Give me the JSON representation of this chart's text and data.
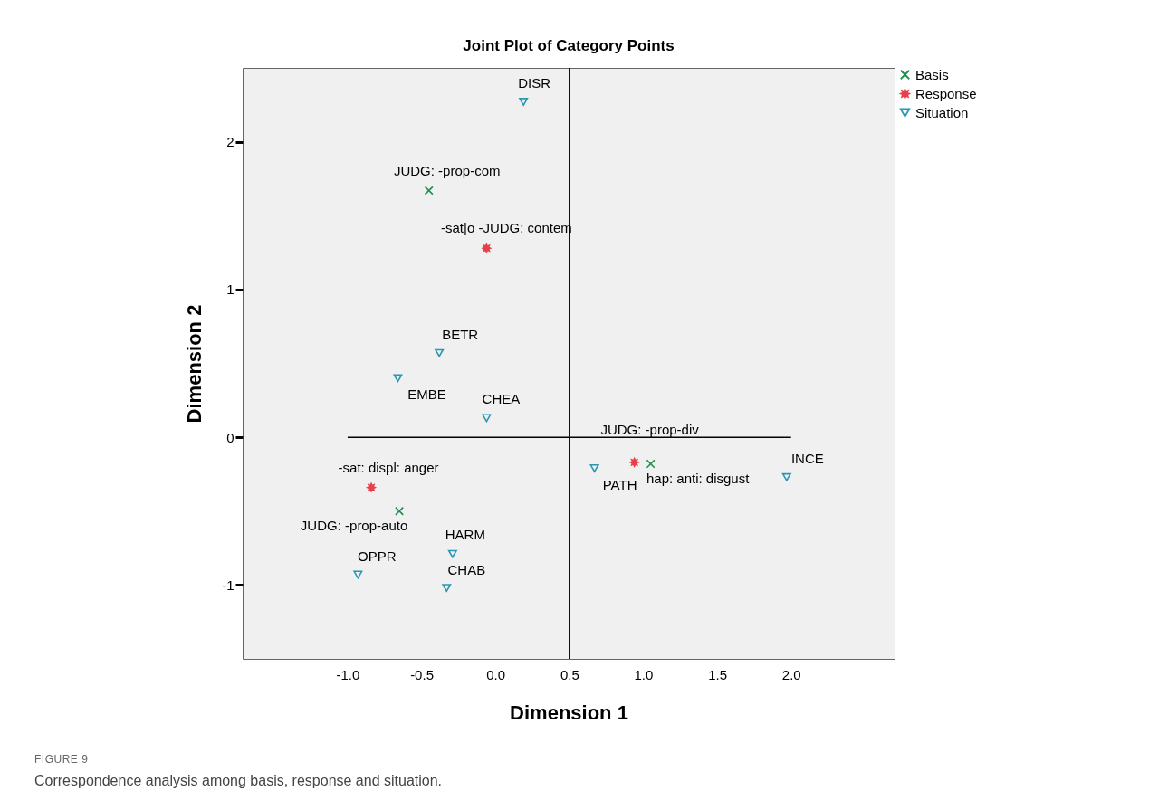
{
  "chart_data": {
    "type": "scatter",
    "title": "Joint Plot of Category Points",
    "xlabel": "Dimension 1",
    "ylabel": "Dimension 2",
    "xlim": [
      -1.71,
      2.7
    ],
    "ylim": [
      -1.5,
      2.5
    ],
    "xticks": [
      {
        "value": -1,
        "label": "-1.0"
      },
      {
        "value": -0.5,
        "label": "-0.5"
      },
      {
        "value": 0,
        "label": "0.0"
      },
      {
        "value": 0.5,
        "label": "0.5"
      },
      {
        "value": 1,
        "label": "1.0"
      },
      {
        "value": 1.5,
        "label": "1.5"
      },
      {
        "value": 2,
        "label": "2.0"
      }
    ],
    "yticks": [
      -1,
      0,
      1,
      2
    ],
    "grid": false,
    "legend": "top right",
    "series": [
      {
        "name": "Basis",
        "color": "#1e8f4e",
        "marker": "cross",
        "x": [
          -0.45,
          -0.65,
          1.05
        ],
        "values": [
          1.67,
          -0.5,
          -0.18
        ]
      },
      {
        "name": "Response",
        "color": "#e8404a",
        "marker": "star",
        "x": [
          -0.06,
          -0.84,
          0.94
        ],
        "values": [
          1.28,
          -0.34,
          -0.17
        ]
      },
      {
        "name": "Situation",
        "color": "#2a96b0",
        "marker": "triangle",
        "x": [
          0.19,
          -0.38,
          -0.66,
          -0.06,
          0.67,
          1.97,
          -0.29,
          -0.93,
          -0.33
        ],
        "values": [
          2.27,
          0.57,
          0.4,
          0.13,
          -0.21,
          -0.27,
          -0.79,
          -0.93,
          -1.02
        ]
      }
    ],
    "ref_lines": [
      {
        "axis": "x",
        "value": 0.5
      },
      {
        "axis": "y",
        "value": 0
      }
    ],
    "annotations": [
      {
        "text": "JUDG: -prop-com",
        "x": -0.45,
        "y": 1.67
      },
      {
        "text": "JUDG: -prop-auto",
        "x": -0.65,
        "y": -0.5
      },
      {
        "text": "JUDG: -prop-div",
        "x": 1.05,
        "y": -0.18
      },
      {
        "text": "-sat|o -JUDG: contem",
        "x": -0.06,
        "y": 1.28
      },
      {
        "text": "-sat: displ: anger",
        "x": -0.84,
        "y": -0.34
      },
      {
        "text": "hap: anti: disgust",
        "x": 0.94,
        "y": -0.17
      },
      {
        "text": "DISR",
        "x": 0.19,
        "y": 2.27
      },
      {
        "text": "BETR",
        "x": -0.38,
        "y": 0.57
      },
      {
        "text": "EMBE",
        "x": -0.66,
        "y": 0.4
      },
      {
        "text": "CHEA",
        "x": -0.06,
        "y": 0.13
      },
      {
        "text": "PATH",
        "x": 0.67,
        "y": -0.21
      },
      {
        "text": "INCE",
        "x": 1.97,
        "y": -0.27
      },
      {
        "text": "HARM",
        "x": -0.29,
        "y": -0.79
      },
      {
        "text": "OPPR",
        "x": -0.93,
        "y": -0.93
      },
      {
        "text": "CHAB",
        "x": -0.33,
        "y": -1.02
      },
      "FIGURE 9",
      "Correspondence analysis among basis, response and situation."
    ]
  }
}
